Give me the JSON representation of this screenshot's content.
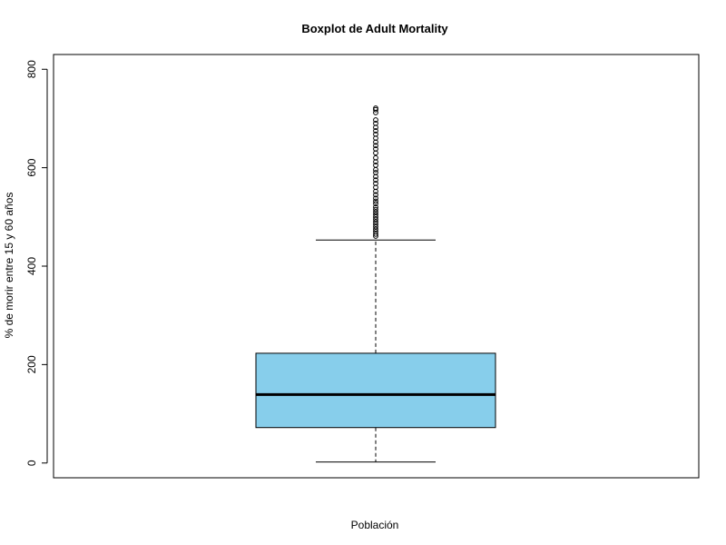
{
  "chart_data": {
    "type": "boxplot",
    "title": "Boxplot de Adult Mortality",
    "xlabel": "Población",
    "ylabel": "% de morir entre 15 y 60 años",
    "ylim": [
      -30,
      830
    ],
    "yticks": [
      0,
      200,
      400,
      600,
      800
    ],
    "grid": false,
    "legend": "none",
    "box": {
      "whisker_low": 2,
      "q1": 72,
      "median": 139,
      "q3": 223,
      "whisker_high": 453
    },
    "outliers": [
      461,
      465,
      470,
      475,
      480,
      485,
      490,
      495,
      500,
      505,
      510,
      515,
      520,
      527,
      532,
      538,
      545,
      552,
      560,
      568,
      575,
      582,
      590,
      596,
      605,
      612,
      620,
      630,
      638,
      645,
      652,
      660,
      668,
      675,
      682,
      690,
      697,
      712,
      718,
      721
    ],
    "colors": {
      "box_fill": "#87ceeb",
      "line": "#000000"
    }
  }
}
